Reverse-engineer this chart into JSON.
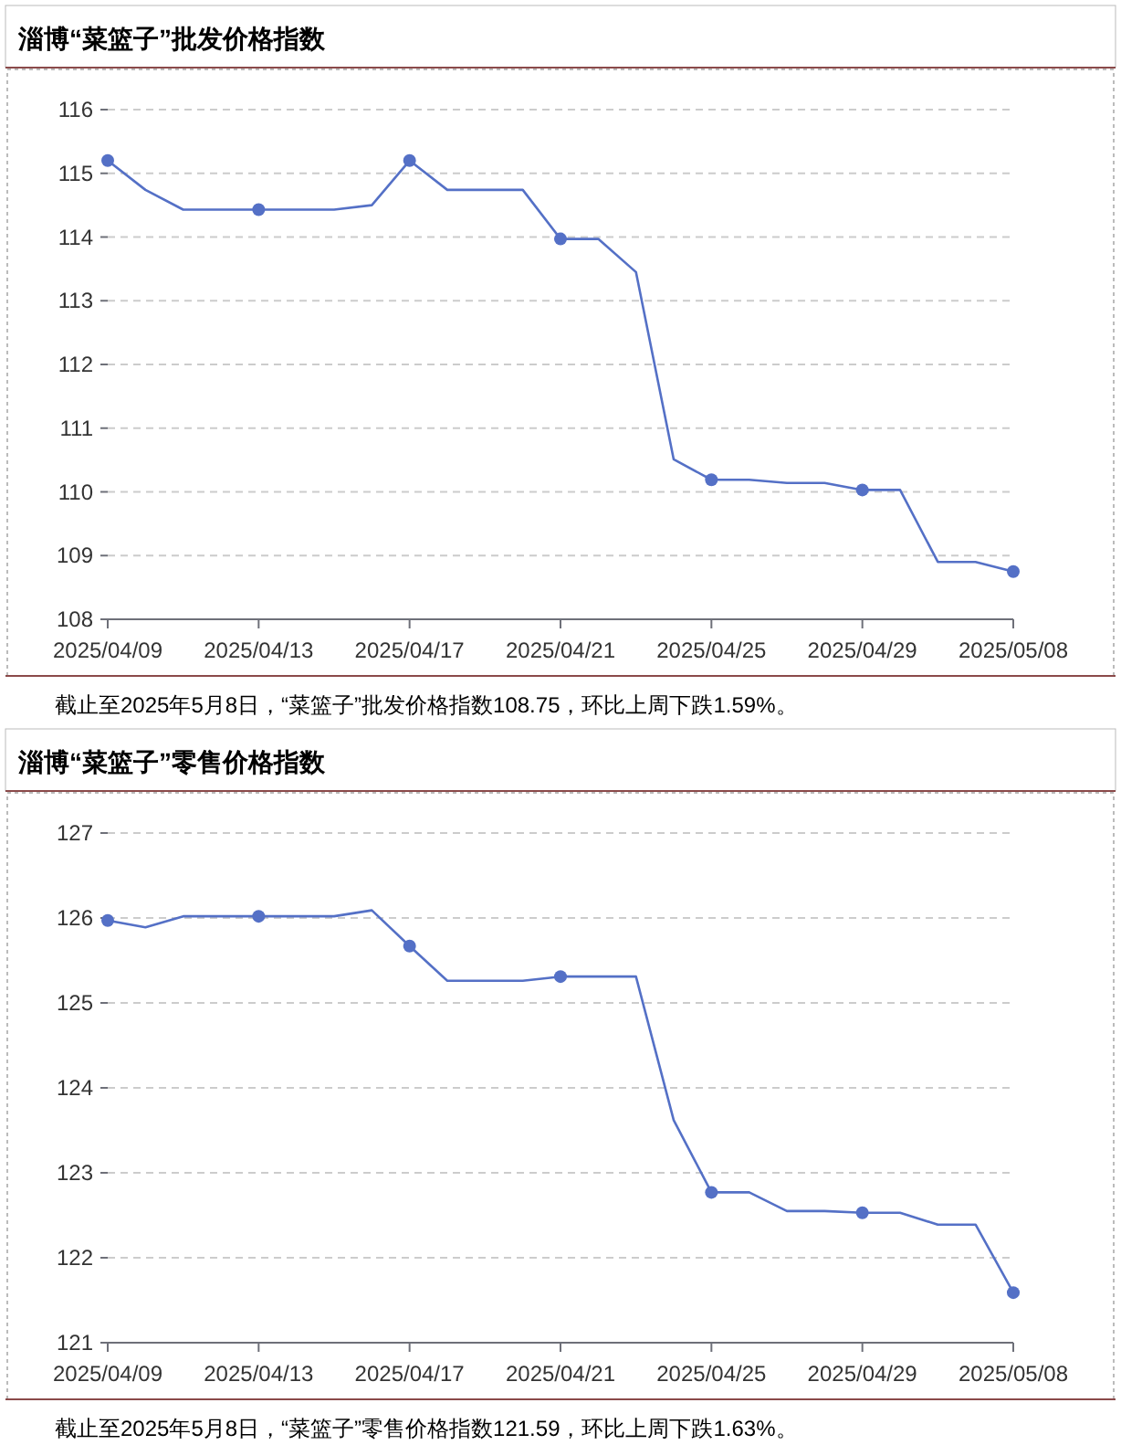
{
  "chart_data": [
    {
      "type": "line",
      "title": "淄博“菜篮子”批发价格指数",
      "annotations": [
        "截止至2025年5月8日，“菜篮子”批发价格指数108.75，环比上周下跌1.59%。"
      ],
      "categories": [
        "2025/04/09",
        null,
        null,
        null,
        "2025/04/13",
        null,
        null,
        null,
        "2025/04/17",
        null,
        null,
        null,
        "2025/04/21",
        null,
        null,
        null,
        "2025/04/25",
        null,
        null,
        null,
        "2025/04/29",
        null,
        null,
        null,
        "2025/05/08"
      ],
      "series": [
        {
          "color": "#5470c6",
          "marker": "none",
          "values": [
            115.2,
            114.74,
            114.43,
            114.43,
            114.43,
            114.43,
            114.43,
            114.5,
            115.2,
            114.74,
            114.74,
            114.74,
            113.97,
            113.97,
            113.45,
            110.51,
            110.19,
            110.19,
            110.14,
            110.14,
            110.03,
            110.03,
            108.9,
            108.9,
            108.75
          ]
        },
        {
          "type": "scatter",
          "color": "#5470c6",
          "marker": "circle",
          "x": [
            "2025/04/09",
            "2025/04/13",
            "2025/04/17",
            "2025/04/21",
            "2025/04/25",
            "2025/04/29",
            "2025/05/08"
          ],
          "values": [
            115.2,
            114.43,
            115.2,
            113.97,
            110.19,
            110.03,
            108.75
          ]
        }
      ],
      "ylim": [
        108,
        116
      ],
      "yticks": [
        108,
        109,
        110,
        111,
        112,
        113,
        114,
        115,
        116
      ],
      "grid": "y"
    },
    {
      "type": "line",
      "title": "淄博“菜篮子”零售价格指数",
      "annotations": [
        "截止至2025年5月8日，“菜篮子”零售价格指数121.59，环比上周下跌1.63%。"
      ],
      "categories": [
        "2025/04/09",
        null,
        null,
        null,
        "2025/04/13",
        null,
        null,
        null,
        "2025/04/17",
        null,
        null,
        null,
        "2025/04/21",
        null,
        null,
        null,
        "2025/04/25",
        null,
        null,
        null,
        "2025/04/29",
        null,
        null,
        null,
        "2025/05/08"
      ],
      "series": [
        {
          "color": "#5470c6",
          "marker": "none",
          "values": [
            125.97,
            125.89,
            126.02,
            126.02,
            126.02,
            126.02,
            126.02,
            126.09,
            125.67,
            125.26,
            125.26,
            125.26,
            125.31,
            125.31,
            125.31,
            123.62,
            122.77,
            122.77,
            122.55,
            122.55,
            122.53,
            122.53,
            122.39,
            122.39,
            121.59
          ]
        },
        {
          "type": "scatter",
          "color": "#5470c6",
          "marker": "circle",
          "x": [
            "2025/04/09",
            "2025/04/13",
            "2025/04/17",
            "2025/04/21",
            "2025/04/25",
            "2025/04/29",
            "2025/05/08"
          ],
          "values": [
            125.97,
            126.02,
            125.67,
            125.31,
            122.77,
            122.53,
            121.59
          ]
        }
      ],
      "ylim": [
        121,
        127
      ],
      "yticks": [
        121,
        122,
        123,
        124,
        125,
        126,
        127
      ],
      "grid": "y"
    }
  ]
}
